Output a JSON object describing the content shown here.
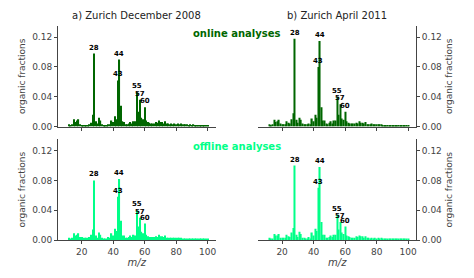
{
  "chart_data": [
    {
      "type": "bar",
      "title": "a) Zurich December 2008",
      "subtitle": "online analyses",
      "x": [
        12,
        13,
        14,
        15,
        16,
        17,
        18,
        19,
        20,
        21,
        22,
        23,
        24,
        25,
        26,
        27,
        28,
        29,
        30,
        31,
        32,
        33,
        34,
        35,
        36,
        37,
        38,
        39,
        40,
        41,
        42,
        43,
        44,
        45,
        46,
        47,
        48,
        49,
        50,
        51,
        52,
        53,
        54,
        55,
        56,
        57,
        58,
        59,
        60,
        61,
        62,
        63,
        64,
        65,
        66,
        67,
        68,
        69,
        70,
        71,
        72,
        73,
        74,
        75,
        76,
        77,
        78,
        79,
        80,
        81,
        82,
        83,
        84,
        85,
        86,
        87,
        88,
        89,
        90,
        91,
        92,
        93,
        94,
        95,
        96,
        97,
        98,
        99,
        100
      ],
      "values": [
        0.003,
        0.002,
        0.003,
        0.01,
        0.006,
        0.008,
        0.01,
        0.003,
        0.002,
        0.002,
        0.002,
        0.002,
        0.002,
        0.003,
        0.005,
        0.016,
        0.098,
        0.007,
        0.004,
        0.012,
        0.008,
        0.003,
        0.002,
        0.002,
        0.002,
        0.003,
        0.003,
        0.008,
        0.006,
        0.014,
        0.01,
        0.062,
        0.09,
        0.028,
        0.007,
        0.006,
        0.003,
        0.003,
        0.004,
        0.006,
        0.004,
        0.007,
        0.007,
        0.046,
        0.02,
        0.036,
        0.012,
        0.01,
        0.026,
        0.008,
        0.006,
        0.005,
        0.004,
        0.004,
        0.004,
        0.006,
        0.005,
        0.008,
        0.006,
        0.006,
        0.004,
        0.007,
        0.004,
        0.004,
        0.003,
        0.004,
        0.003,
        0.004,
        0.003,
        0.004,
        0.003,
        0.004,
        0.003,
        0.003,
        0.003,
        0.003,
        0.002,
        0.003,
        0.002,
        0.003,
        0.002,
        0.002,
        0.002,
        0.002,
        0.002,
        0.002,
        0.001,
        0.001,
        0.001
      ],
      "color": "#006600",
      "xlim": [
        5,
        105
      ],
      "ylim": [
        0,
        0.135
      ],
      "xticks": [
        20,
        40,
        60,
        80,
        100
      ],
      "yticks": [
        {
          "value": 0,
          "label": "0.00"
        },
        0.04,
        0.08,
        0.12
      ],
      "ylabel": "organic fractions",
      "tick_labels": "y",
      "grid": false,
      "annotations": [
        {
          "x": 28,
          "text": "28"
        },
        {
          "x": 44,
          "text": "44"
        },
        {
          "x": 43,
          "text": "43"
        },
        {
          "x": 55,
          "text": "55"
        },
        {
          "x": 57,
          "text": "57"
        },
        {
          "x": 60,
          "text": "60"
        }
      ]
    },
    {
      "type": "bar",
      "title": "b) Zurich April 2011",
      "x": [
        12,
        13,
        14,
        15,
        16,
        17,
        18,
        19,
        20,
        21,
        22,
        23,
        24,
        25,
        26,
        27,
        28,
        29,
        30,
        31,
        32,
        33,
        34,
        35,
        36,
        37,
        38,
        39,
        40,
        41,
        42,
        43,
        44,
        45,
        46,
        47,
        48,
        49,
        50,
        51,
        52,
        53,
        54,
        55,
        56,
        57,
        58,
        59,
        60,
        61,
        62,
        63,
        64,
        65,
        66,
        67,
        68,
        69,
        70,
        71,
        72,
        73,
        74,
        75,
        76,
        77,
        78,
        79,
        80,
        81,
        82,
        83,
        84,
        85,
        86,
        87,
        88,
        89,
        90,
        91,
        92,
        93,
        94,
        95,
        96,
        97,
        98,
        99,
        100
      ],
      "values": [
        0.003,
        0.002,
        0.003,
        0.009,
        0.006,
        0.007,
        0.009,
        0.004,
        0.003,
        0.003,
        0.003,
        0.007,
        0.005,
        0.004,
        0.01,
        0.018,
        0.118,
        0.009,
        0.005,
        0.012,
        0.009,
        0.004,
        0.003,
        0.003,
        0.003,
        0.004,
        0.003,
        0.011,
        0.007,
        0.016,
        0.012,
        0.08,
        0.115,
        0.026,
        0.008,
        0.008,
        0.004,
        0.003,
        0.005,
        0.007,
        0.004,
        0.008,
        0.008,
        0.04,
        0.016,
        0.03,
        0.011,
        0.009,
        0.02,
        0.007,
        0.005,
        0.004,
        0.004,
        0.004,
        0.004,
        0.005,
        0.004,
        0.007,
        0.005,
        0.005,
        0.004,
        0.006,
        0.003,
        0.003,
        0.003,
        0.004,
        0.003,
        0.003,
        0.003,
        0.003,
        0.003,
        0.003,
        0.002,
        0.002,
        0.002,
        0.002,
        0.002,
        0.002,
        0.002,
        0.002,
        0.002,
        0.002,
        0.002,
        0.002,
        0.001,
        0.001,
        0.001,
        0.001,
        0.001
      ],
      "color": "#006600",
      "xlim": [
        5,
        105
      ],
      "ylim": [
        0,
        0.135
      ],
      "xticks": [
        20,
        40,
        60,
        80,
        100
      ],
      "yticks": [
        {
          "value": 0,
          "label": "0.00"
        },
        0.04,
        0.08,
        0.12
      ],
      "ylabel": "organic fractions",
      "tick_labels": "y",
      "grid": false,
      "annotations": [
        {
          "x": 28,
          "text": "28"
        },
        {
          "x": 44,
          "text": "44"
        },
        {
          "x": 43,
          "text": "43"
        },
        {
          "x": 55,
          "text": "55"
        },
        {
          "x": 57,
          "text": "57"
        },
        {
          "x": 60,
          "text": "60"
        }
      ]
    },
    {
      "type": "bar",
      "subtitle": "offline analyses",
      "x": [
        12,
        13,
        14,
        15,
        16,
        17,
        18,
        19,
        20,
        21,
        22,
        23,
        24,
        25,
        26,
        27,
        28,
        29,
        30,
        31,
        32,
        33,
        34,
        35,
        36,
        37,
        38,
        39,
        40,
        41,
        42,
        43,
        44,
        45,
        46,
        47,
        48,
        49,
        50,
        51,
        52,
        53,
        54,
        55,
        56,
        57,
        58,
        59,
        60,
        61,
        62,
        63,
        64,
        65,
        66,
        67,
        68,
        69,
        70,
        71,
        72,
        73,
        74,
        75,
        76,
        77,
        78,
        79,
        80,
        81,
        82,
        83,
        84,
        85,
        86,
        87,
        88,
        89,
        90,
        91,
        92,
        93,
        94,
        95,
        96,
        97,
        98,
        99,
        100
      ],
      "values": [
        0.003,
        0.002,
        0.003,
        0.009,
        0.006,
        0.007,
        0.009,
        0.004,
        0.004,
        0.003,
        0.003,
        0.003,
        0.003,
        0.004,
        0.007,
        0.014,
        0.08,
        0.006,
        0.003,
        0.01,
        0.007,
        0.003,
        0.002,
        0.002,
        0.002,
        0.004,
        0.003,
        0.009,
        0.006,
        0.015,
        0.012,
        0.058,
        0.082,
        0.026,
        0.006,
        0.006,
        0.003,
        0.003,
        0.004,
        0.006,
        0.004,
        0.007,
        0.006,
        0.04,
        0.018,
        0.03,
        0.011,
        0.009,
        0.022,
        0.007,
        0.005,
        0.004,
        0.004,
        0.004,
        0.004,
        0.005,
        0.004,
        0.007,
        0.005,
        0.005,
        0.004,
        0.006,
        0.003,
        0.003,
        0.003,
        0.003,
        0.003,
        0.003,
        0.003,
        0.003,
        0.003,
        0.003,
        0.002,
        0.002,
        0.002,
        0.002,
        0.002,
        0.002,
        0.002,
        0.002,
        0.002,
        0.002,
        0.001,
        0.001,
        0.001,
        0.001,
        0.001,
        0.001,
        0.001
      ],
      "color": "#00ff88",
      "xlim": [
        5,
        105
      ],
      "ylim": [
        0,
        0.135
      ],
      "xticks": [
        20,
        40,
        60,
        80,
        100
      ],
      "yticks": [
        {
          "value": 0,
          "label": "0.00"
        },
        0.04,
        0.08,
        0.12
      ],
      "xlabel": "m/z",
      "ylabel": "organic fractions",
      "grid": false,
      "annotations": [
        {
          "x": 28,
          "text": "28"
        },
        {
          "x": 44,
          "text": "44"
        },
        {
          "x": 43,
          "text": "43"
        },
        {
          "x": 55,
          "text": "55"
        },
        {
          "x": 57,
          "text": "57"
        },
        {
          "x": 60,
          "text": "60"
        }
      ]
    },
    {
      "type": "bar",
      "x": [
        12,
        13,
        14,
        15,
        16,
        17,
        18,
        19,
        20,
        21,
        22,
        23,
        24,
        25,
        26,
        27,
        28,
        29,
        30,
        31,
        32,
        33,
        34,
        35,
        36,
        37,
        38,
        39,
        40,
        41,
        42,
        43,
        44,
        45,
        46,
        47,
        48,
        49,
        50,
        51,
        52,
        53,
        54,
        55,
        56,
        57,
        58,
        59,
        60,
        61,
        62,
        63,
        64,
        65,
        66,
        67,
        68,
        69,
        70,
        71,
        72,
        73,
        74,
        75,
        76,
        77,
        78,
        79,
        80,
        81,
        82,
        83,
        84,
        85,
        86,
        87,
        88,
        89,
        90,
        91,
        92,
        93,
        94,
        95,
        96,
        97,
        98,
        99,
        100
      ],
      "values": [
        0.003,
        0.002,
        0.002,
        0.008,
        0.006,
        0.006,
        0.008,
        0.003,
        0.003,
        0.003,
        0.003,
        0.007,
        0.005,
        0.004,
        0.01,
        0.016,
        0.1,
        0.007,
        0.004,
        0.011,
        0.008,
        0.003,
        0.003,
        0.002,
        0.002,
        0.004,
        0.002,
        0.01,
        0.006,
        0.015,
        0.012,
        0.07,
        0.098,
        0.024,
        0.007,
        0.007,
        0.003,
        0.003,
        0.004,
        0.006,
        0.004,
        0.007,
        0.007,
        0.034,
        0.014,
        0.024,
        0.01,
        0.008,
        0.018,
        0.006,
        0.005,
        0.004,
        0.003,
        0.003,
        0.003,
        0.005,
        0.004,
        0.006,
        0.005,
        0.005,
        0.003,
        0.005,
        0.003,
        0.003,
        0.002,
        0.003,
        0.002,
        0.003,
        0.002,
        0.003,
        0.002,
        0.003,
        0.002,
        0.002,
        0.002,
        0.002,
        0.002,
        0.002,
        0.002,
        0.002,
        0.002,
        0.002,
        0.001,
        0.001,
        0.001,
        0.001,
        0.001,
        0.001,
        0.001
      ],
      "color": "#00ff88",
      "xlim": [
        5,
        105
      ],
      "ylim": [
        0,
        0.135
      ],
      "xticks": [
        20,
        40,
        60,
        80,
        100
      ],
      "yticks": [
        {
          "value": 0,
          "label": "0.00"
        },
        0.04,
        0.08,
        0.12
      ],
      "xlabel": "m/z",
      "ylabel": "organic fractions",
      "grid": false,
      "annotations": [
        {
          "x": 28,
          "text": "28"
        },
        {
          "x": 44,
          "text": "44"
        },
        {
          "x": 43,
          "text": "43"
        },
        {
          "x": 55,
          "text": "55"
        },
        {
          "x": 57,
          "text": "57"
        },
        {
          "x": 60,
          "text": "60"
        }
      ]
    }
  ]
}
